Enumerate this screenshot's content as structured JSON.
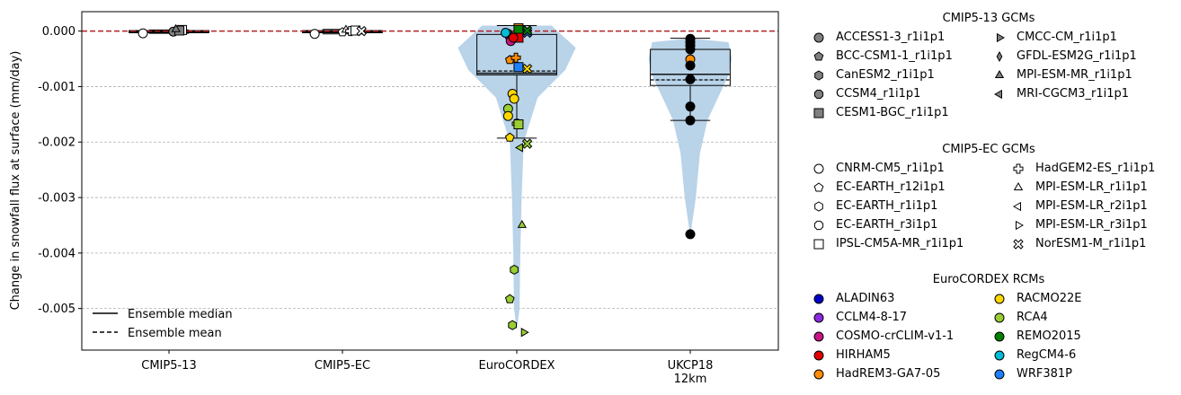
{
  "chart_data": {
    "type": "violin-box-scatter",
    "ylabel": "Change in snowfall flux at surface (mm/day)",
    "categories": [
      "CMIP5-13",
      "CMIP5-EC",
      "EuroCORDEX",
      "UKCP18\n12km"
    ],
    "ylim": [
      -0.00575,
      0.00035
    ],
    "yticks": [
      0.0,
      -0.001,
      -0.002,
      -0.003,
      -0.004,
      -0.005
    ],
    "ytick_labels": [
      "0.000",
      "-0.001",
      "-0.002",
      "-0.003",
      "-0.004",
      "-0.005"
    ],
    "grid": "horizontal dashed",
    "reference_line": {
      "y": 0.0,
      "color": "#b22222",
      "style": "dashed"
    },
    "ensemble_legend": [
      {
        "label": "Ensemble median",
        "style": "solid"
      },
      {
        "label": "Ensemble mean",
        "style": "dashed"
      }
    ],
    "groups": [
      {
        "name": "CMIP5-13",
        "violin": [
          [
            2e-05,
            0.0
          ],
          [
            -1e-05,
            0.0
          ],
          [
            -3e-05,
            0.0
          ]
        ],
        "box": {
          "q1": -3e-05,
          "median": -1e-05,
          "q3": 1e-05,
          "whisker_low": -4e-05,
          "whisker_high": 2e-05,
          "mean": -1e-05
        },
        "points": [
          {
            "model": "CNRM-CM5_r1i1p1",
            "y": -4e-05,
            "dx": -0.3,
            "fill": "#ffffff",
            "marker": "circle"
          },
          {
            "model": "IPSL-CM5A-MR_r1i1p1",
            "y": 2e-05,
            "dx": 0.15,
            "fill": "#ffffff",
            "marker": "square"
          },
          {
            "model": "ACCESS1-3_r1i1p1",
            "y": -1e-05,
            "dx": 0.05,
            "fill": "#808080",
            "marker": "circle"
          },
          {
            "model": "CESM1-BGC_r1i1p1",
            "y": 1e-05,
            "dx": 0.12,
            "fill": "#808080",
            "marker": "square"
          },
          {
            "model": "MPI-ESM-MR_r1i1p1",
            "y": 3e-05,
            "dx": 0.08,
            "fill": "#808080",
            "marker": "triangle"
          }
        ]
      },
      {
        "name": "CMIP5-EC",
        "violin": [
          [
            2e-05,
            0.0
          ],
          [
            -1e-05,
            0.0
          ],
          [
            -3e-05,
            0.0
          ]
        ],
        "box": {
          "q1": -3e-05,
          "median": -1e-05,
          "q3": 1e-05,
          "whisker_low": -5e-05,
          "whisker_high": 3e-05,
          "mean": -1e-05
        },
        "points": [
          {
            "model": "CNRM-CM5_r1i1p1",
            "y": -5e-05,
            "dx": -0.32,
            "fill": "#ffffff",
            "marker": "circle"
          },
          {
            "model": "EC-EARTH_r12i1p1",
            "y": -2e-05,
            "dx": 0.0,
            "fill": "#ffffff",
            "marker": "pentagon"
          },
          {
            "model": "MPI-ESM-LR_r1i1p1",
            "y": 2e-05,
            "dx": 0.04,
            "fill": "#ffffff",
            "marker": "triangle"
          },
          {
            "model": "HadGEM2-ES_r1i1p1",
            "y": 0.0,
            "dx": 0.09,
            "fill": "#ffffff",
            "marker": "plus"
          },
          {
            "model": "IPSL-CM5A-MR_r1i1p1",
            "y": 1e-05,
            "dx": 0.15,
            "fill": "#ffffff",
            "marker": "square"
          },
          {
            "model": "NorESM1-M_r1i1p1",
            "y": 0.0,
            "dx": 0.22,
            "fill": "#ffffff",
            "marker": "x"
          }
        ]
      },
      {
        "name": "EuroCORDEX",
        "violin": [
          [
            0.0001,
            0.5
          ],
          [
            -0.0003,
            0.85
          ],
          [
            -0.0007,
            0.7
          ],
          [
            -0.0012,
            0.3
          ],
          [
            -0.002,
            0.1
          ],
          [
            -0.003,
            0.07
          ],
          [
            -0.004,
            0.05
          ],
          [
            -0.005,
            0.04
          ],
          [
            -0.0054,
            0.0
          ]
        ],
        "box": {
          "q1": -0.00079,
          "median": -0.00076,
          "q3": -6e-05,
          "whisker_low": -0.00193,
          "whisker_high": 0.0001,
          "mean": -0.00072
        },
        "points": [
          {
            "model": "CESM1-BGC_r1i1p1",
            "y": 5e-05,
            "dx": 0.02,
            "fill": "#ff9900",
            "marker": "square"
          },
          {
            "model": "ACCESS1-3_r1i1p1",
            "y": -5e-05,
            "dx": -0.1,
            "fill": "#00a000",
            "marker": "circle"
          },
          {
            "model": "REMO2015",
            "y": 2e-05,
            "dx": 0.02,
            "fill": "#008000",
            "marker": "square"
          },
          {
            "model": "HIRHAM5",
            "y": -0.00012,
            "dx": 0.02,
            "fill": "#e00000",
            "marker": "square"
          },
          {
            "model": "WRF381P",
            "y": -3e-05,
            "dx": 0.12,
            "fill": "#1e7fff",
            "marker": "x"
          },
          {
            "model": "REMO2015",
            "y": 1e-05,
            "dx": 0.12,
            "fill": "#008000",
            "marker": "x"
          },
          {
            "model": "CCLM4-8-17",
            "y": -0.0001,
            "dx": -0.08,
            "fill": "#8a2be2",
            "marker": "circle"
          },
          {
            "model": "COSMO-crCLIM-v1-1",
            "y": -0.00018,
            "dx": -0.07,
            "fill": "#c71585",
            "marker": "circle"
          },
          {
            "model": "RegCM4-6",
            "y": -3e-05,
            "dx": -0.13,
            "fill": "#00bcd4",
            "marker": "circle"
          },
          {
            "model": "HIRHAM5",
            "y": -0.00012,
            "dx": -0.04,
            "fill": "#e00000",
            "marker": "circle"
          },
          {
            "model": "HadREM3-GA7-05",
            "y": -0.00052,
            "dx": -0.08,
            "fill": "#ff8c00",
            "marker": "pentagon"
          },
          {
            "model": "HadREM3-GA7-05",
            "y": -0.00048,
            "dx": -0.01,
            "fill": "#ff8c00",
            "marker": "plus"
          },
          {
            "model": "WRF381P",
            "y": -0.00065,
            "dx": 0.02,
            "fill": "#1e7fff",
            "marker": "square"
          },
          {
            "model": "RACMO22E",
            "y": -0.00068,
            "dx": 0.12,
            "fill": "#ffd700",
            "marker": "x"
          },
          {
            "model": "RACMO22E",
            "y": -0.00113,
            "dx": -0.05,
            "fill": "#ffd700",
            "marker": "circle"
          },
          {
            "model": "RACMO22E",
            "y": -0.00122,
            "dx": -0.03,
            "fill": "#ffd700",
            "marker": "circle"
          },
          {
            "model": "RCA4",
            "y": -0.0014,
            "dx": -0.1,
            "fill": "#9acd32",
            "marker": "circle"
          },
          {
            "model": "RACMO22E",
            "y": -0.00153,
            "dx": -0.1,
            "fill": "#ffd700",
            "marker": "circle"
          },
          {
            "model": "RCA4",
            "y": -0.00167,
            "dx": 0.0,
            "fill": "#9acd32",
            "marker": "plus"
          },
          {
            "model": "RCA4",
            "y": -0.00168,
            "dx": 0.02,
            "fill": "#9acd32",
            "marker": "square"
          },
          {
            "model": "RACMO22E",
            "y": -0.00192,
            "dx": -0.08,
            "fill": "#ffd700",
            "marker": "pentagon"
          },
          {
            "model": "RCA4",
            "y": -0.00203,
            "dx": 0.12,
            "fill": "#9acd32",
            "marker": "x"
          },
          {
            "model": "RCA4",
            "y": -0.0021,
            "dx": 0.04,
            "fill": "#9acd32",
            "marker": "tri-left"
          },
          {
            "model": "RCA4",
            "y": -0.0035,
            "dx": 0.06,
            "fill": "#9acd32",
            "marker": "triangle"
          },
          {
            "model": "RCA4",
            "y": -0.0043,
            "dx": -0.03,
            "fill": "#9acd32",
            "marker": "hexagon"
          },
          {
            "model": "RCA4",
            "y": -0.00483,
            "dx": -0.08,
            "fill": "#9acd32",
            "marker": "pentagon"
          },
          {
            "model": "RCA4",
            "y": -0.0053,
            "dx": -0.05,
            "fill": "#9acd32",
            "marker": "hexagon"
          },
          {
            "model": "RCA4",
            "y": -0.00543,
            "dx": 0.08,
            "fill": "#9acd32",
            "marker": "tri-right"
          }
        ]
      },
      {
        "name": "UKCP18 12km",
        "violin": [
          [
            -0.00013,
            0.0
          ],
          [
            -0.0002,
            0.55
          ],
          [
            -0.0005,
            0.6
          ],
          [
            -0.0008,
            0.55
          ],
          [
            -0.0012,
            0.4
          ],
          [
            -0.0016,
            0.25
          ],
          [
            -0.0022,
            0.14
          ],
          [
            -0.003,
            0.08
          ],
          [
            -0.0037,
            0.0
          ]
        ],
        "box": {
          "q1": -0.00098,
          "median": -0.00078,
          "q3": -0.00033,
          "whisker_low": -0.00161,
          "whisker_high": -0.00013,
          "mean": -0.00088
        },
        "points": [
          {
            "model": "UKCP18",
            "y": -0.00014,
            "dx": 0.0,
            "fill": "#000000",
            "marker": "circle"
          },
          {
            "model": "UKCP18",
            "y": -0.0002,
            "dx": 0.0,
            "fill": "#000000",
            "marker": "circle"
          },
          {
            "model": "UKCP18",
            "y": -0.00026,
            "dx": 0.0,
            "fill": "#000000",
            "marker": "circle"
          },
          {
            "model": "UKCP18",
            "y": -0.00033,
            "dx": 0.0,
            "fill": "#000000",
            "marker": "circle"
          },
          {
            "model": "UKCP18",
            "y": -0.00051,
            "dx": 0.0,
            "fill": "#ff8c00",
            "marker": "circle"
          },
          {
            "model": "UKCP18",
            "y": -0.00062,
            "dx": 0.0,
            "fill": "#000000",
            "marker": "circle"
          },
          {
            "model": "UKCP18",
            "y": -0.00087,
            "dx": 0.0,
            "fill": "#000000",
            "marker": "circle"
          },
          {
            "model": "UKCP18",
            "y": -0.00136,
            "dx": 0.0,
            "fill": "#000000",
            "marker": "circle"
          },
          {
            "model": "UKCP18",
            "y": -0.00161,
            "dx": 0.0,
            "fill": "#000000",
            "marker": "circle"
          },
          {
            "model": "UKCP18",
            "y": -0.00366,
            "dx": 0.0,
            "fill": "#000000",
            "marker": "circle"
          }
        ]
      }
    ],
    "colors": {
      "violin": "#b9d3e9",
      "grid": "#b0b0b0",
      "zero_line": "#b22222"
    }
  },
  "legend": {
    "cmip513": {
      "title": "CMIP5-13 GCMs",
      "items": [
        {
          "label": "ACCESS1-3_r1i1p1",
          "marker": "circle",
          "fill": "#808080"
        },
        {
          "label": "BCC-CSM1-1_r1i1p1",
          "marker": "pentagon",
          "fill": "#808080"
        },
        {
          "label": "CanESM2_r1i1p1",
          "marker": "hexagon",
          "fill": "#808080"
        },
        {
          "label": "CCSM4_r1i1p1",
          "marker": "octagon",
          "fill": "#808080"
        },
        {
          "label": "CESM1-BGC_r1i1p1",
          "marker": "square",
          "fill": "#808080"
        },
        {
          "label": "CMCC-CM_r1i1p1",
          "marker": "tri-right",
          "fill": "#808080"
        },
        {
          "label": "GFDL-ESM2G_r1i1p1",
          "marker": "thin-diamond",
          "fill": "#808080"
        },
        {
          "label": "MPI-ESM-MR_r1i1p1",
          "marker": "triangle",
          "fill": "#808080"
        },
        {
          "label": "MRI-CGCM3_r1i1p1",
          "marker": "tri-left",
          "fill": "#808080"
        }
      ]
    },
    "cmip5ec": {
      "title": "CMIP5-EC GCMs",
      "items": [
        {
          "label": "CNRM-CM5_r1i1p1",
          "marker": "circle",
          "fill": "#ffffff"
        },
        {
          "label": "EC-EARTH_r12i1p1",
          "marker": "pentagon",
          "fill": "#ffffff"
        },
        {
          "label": "EC-EARTH_r1i1p1",
          "marker": "hexagon",
          "fill": "#ffffff"
        },
        {
          "label": "EC-EARTH_r3i1p1",
          "marker": "octagon",
          "fill": "#ffffff"
        },
        {
          "label": "IPSL-CM5A-MR_r1i1p1",
          "marker": "square",
          "fill": "#ffffff"
        },
        {
          "label": "HadGEM2-ES_r1i1p1",
          "marker": "plus",
          "fill": "#ffffff"
        },
        {
          "label": "MPI-ESM-LR_r1i1p1",
          "marker": "triangle",
          "fill": "#ffffff"
        },
        {
          "label": "MPI-ESM-LR_r2i1p1",
          "marker": "tri-left",
          "fill": "#ffffff"
        },
        {
          "label": "MPI-ESM-LR_r3i1p1",
          "marker": "tri-right",
          "fill": "#ffffff"
        },
        {
          "label": "NorESM1-M_r1i1p1",
          "marker": "x",
          "fill": "#ffffff"
        }
      ]
    },
    "eurocordex": {
      "title": "EuroCORDEX RCMs",
      "items": [
        {
          "label": "ALADIN63",
          "marker": "circle",
          "fill": "#0000c8"
        },
        {
          "label": "CCLM4-8-17",
          "marker": "circle",
          "fill": "#8a2be2"
        },
        {
          "label": "COSMO-crCLIM-v1-1",
          "marker": "circle",
          "fill": "#c71585"
        },
        {
          "label": "HIRHAM5",
          "marker": "circle",
          "fill": "#e00000"
        },
        {
          "label": "HadREM3-GA7-05",
          "marker": "circle",
          "fill": "#ff8c00"
        },
        {
          "label": "RACMO22E",
          "marker": "circle",
          "fill": "#ffd700"
        },
        {
          "label": "RCA4",
          "marker": "circle",
          "fill": "#9acd32"
        },
        {
          "label": "REMO2015",
          "marker": "circle",
          "fill": "#008000"
        },
        {
          "label": "RegCM4-6",
          "marker": "circle",
          "fill": "#00bcd4"
        },
        {
          "label": "WRF381P",
          "marker": "circle",
          "fill": "#1e7fff"
        }
      ]
    }
  }
}
